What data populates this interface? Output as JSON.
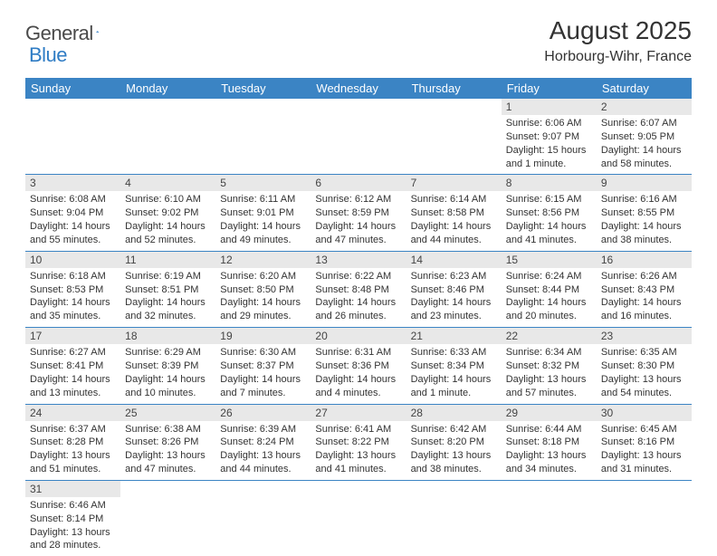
{
  "logo": {
    "text1": "General",
    "text2": "Blue"
  },
  "title": "August 2025",
  "location": "Horbourg-Wihr, France",
  "colors": {
    "header_bg": "#3b84c4",
    "header_text": "#ffffff",
    "daynum_bg": "#e8e8e8",
    "border": "#3b84c4",
    "logo_gray": "#4a4a4a",
    "logo_blue": "#2f7cc4"
  },
  "weekdays": [
    "Sunday",
    "Monday",
    "Tuesday",
    "Wednesday",
    "Thursday",
    "Friday",
    "Saturday"
  ],
  "weeks": [
    [
      {
        "n": "",
        "lines": []
      },
      {
        "n": "",
        "lines": []
      },
      {
        "n": "",
        "lines": []
      },
      {
        "n": "",
        "lines": []
      },
      {
        "n": "",
        "lines": []
      },
      {
        "n": "1",
        "lines": [
          "Sunrise: 6:06 AM",
          "Sunset: 9:07 PM",
          "Daylight: 15 hours and 1 minute."
        ]
      },
      {
        "n": "2",
        "lines": [
          "Sunrise: 6:07 AM",
          "Sunset: 9:05 PM",
          "Daylight: 14 hours and 58 minutes."
        ]
      }
    ],
    [
      {
        "n": "3",
        "lines": [
          "Sunrise: 6:08 AM",
          "Sunset: 9:04 PM",
          "Daylight: 14 hours and 55 minutes."
        ]
      },
      {
        "n": "4",
        "lines": [
          "Sunrise: 6:10 AM",
          "Sunset: 9:02 PM",
          "Daylight: 14 hours and 52 minutes."
        ]
      },
      {
        "n": "5",
        "lines": [
          "Sunrise: 6:11 AM",
          "Sunset: 9:01 PM",
          "Daylight: 14 hours and 49 minutes."
        ]
      },
      {
        "n": "6",
        "lines": [
          "Sunrise: 6:12 AM",
          "Sunset: 8:59 PM",
          "Daylight: 14 hours and 47 minutes."
        ]
      },
      {
        "n": "7",
        "lines": [
          "Sunrise: 6:14 AM",
          "Sunset: 8:58 PM",
          "Daylight: 14 hours and 44 minutes."
        ]
      },
      {
        "n": "8",
        "lines": [
          "Sunrise: 6:15 AM",
          "Sunset: 8:56 PM",
          "Daylight: 14 hours and 41 minutes."
        ]
      },
      {
        "n": "9",
        "lines": [
          "Sunrise: 6:16 AM",
          "Sunset: 8:55 PM",
          "Daylight: 14 hours and 38 minutes."
        ]
      }
    ],
    [
      {
        "n": "10",
        "lines": [
          "Sunrise: 6:18 AM",
          "Sunset: 8:53 PM",
          "Daylight: 14 hours and 35 minutes."
        ]
      },
      {
        "n": "11",
        "lines": [
          "Sunrise: 6:19 AM",
          "Sunset: 8:51 PM",
          "Daylight: 14 hours and 32 minutes."
        ]
      },
      {
        "n": "12",
        "lines": [
          "Sunrise: 6:20 AM",
          "Sunset: 8:50 PM",
          "Daylight: 14 hours and 29 minutes."
        ]
      },
      {
        "n": "13",
        "lines": [
          "Sunrise: 6:22 AM",
          "Sunset: 8:48 PM",
          "Daylight: 14 hours and 26 minutes."
        ]
      },
      {
        "n": "14",
        "lines": [
          "Sunrise: 6:23 AM",
          "Sunset: 8:46 PM",
          "Daylight: 14 hours and 23 minutes."
        ]
      },
      {
        "n": "15",
        "lines": [
          "Sunrise: 6:24 AM",
          "Sunset: 8:44 PM",
          "Daylight: 14 hours and 20 minutes."
        ]
      },
      {
        "n": "16",
        "lines": [
          "Sunrise: 6:26 AM",
          "Sunset: 8:43 PM",
          "Daylight: 14 hours and 16 minutes."
        ]
      }
    ],
    [
      {
        "n": "17",
        "lines": [
          "Sunrise: 6:27 AM",
          "Sunset: 8:41 PM",
          "Daylight: 14 hours and 13 minutes."
        ]
      },
      {
        "n": "18",
        "lines": [
          "Sunrise: 6:29 AM",
          "Sunset: 8:39 PM",
          "Daylight: 14 hours and 10 minutes."
        ]
      },
      {
        "n": "19",
        "lines": [
          "Sunrise: 6:30 AM",
          "Sunset: 8:37 PM",
          "Daylight: 14 hours and 7 minutes."
        ]
      },
      {
        "n": "20",
        "lines": [
          "Sunrise: 6:31 AM",
          "Sunset: 8:36 PM",
          "Daylight: 14 hours and 4 minutes."
        ]
      },
      {
        "n": "21",
        "lines": [
          "Sunrise: 6:33 AM",
          "Sunset: 8:34 PM",
          "Daylight: 14 hours and 1 minute."
        ]
      },
      {
        "n": "22",
        "lines": [
          "Sunrise: 6:34 AM",
          "Sunset: 8:32 PM",
          "Daylight: 13 hours and 57 minutes."
        ]
      },
      {
        "n": "23",
        "lines": [
          "Sunrise: 6:35 AM",
          "Sunset: 8:30 PM",
          "Daylight: 13 hours and 54 minutes."
        ]
      }
    ],
    [
      {
        "n": "24",
        "lines": [
          "Sunrise: 6:37 AM",
          "Sunset: 8:28 PM",
          "Daylight: 13 hours and 51 minutes."
        ]
      },
      {
        "n": "25",
        "lines": [
          "Sunrise: 6:38 AM",
          "Sunset: 8:26 PM",
          "Daylight: 13 hours and 47 minutes."
        ]
      },
      {
        "n": "26",
        "lines": [
          "Sunrise: 6:39 AM",
          "Sunset: 8:24 PM",
          "Daylight: 13 hours and 44 minutes."
        ]
      },
      {
        "n": "27",
        "lines": [
          "Sunrise: 6:41 AM",
          "Sunset: 8:22 PM",
          "Daylight: 13 hours and 41 minutes."
        ]
      },
      {
        "n": "28",
        "lines": [
          "Sunrise: 6:42 AM",
          "Sunset: 8:20 PM",
          "Daylight: 13 hours and 38 minutes."
        ]
      },
      {
        "n": "29",
        "lines": [
          "Sunrise: 6:44 AM",
          "Sunset: 8:18 PM",
          "Daylight: 13 hours and 34 minutes."
        ]
      },
      {
        "n": "30",
        "lines": [
          "Sunrise: 6:45 AM",
          "Sunset: 8:16 PM",
          "Daylight: 13 hours and 31 minutes."
        ]
      }
    ],
    [
      {
        "n": "31",
        "lines": [
          "Sunrise: 6:46 AM",
          "Sunset: 8:14 PM",
          "Daylight: 13 hours and 28 minutes."
        ]
      },
      {
        "n": "",
        "lines": []
      },
      {
        "n": "",
        "lines": []
      },
      {
        "n": "",
        "lines": []
      },
      {
        "n": "",
        "lines": []
      },
      {
        "n": "",
        "lines": []
      },
      {
        "n": "",
        "lines": []
      }
    ]
  ]
}
